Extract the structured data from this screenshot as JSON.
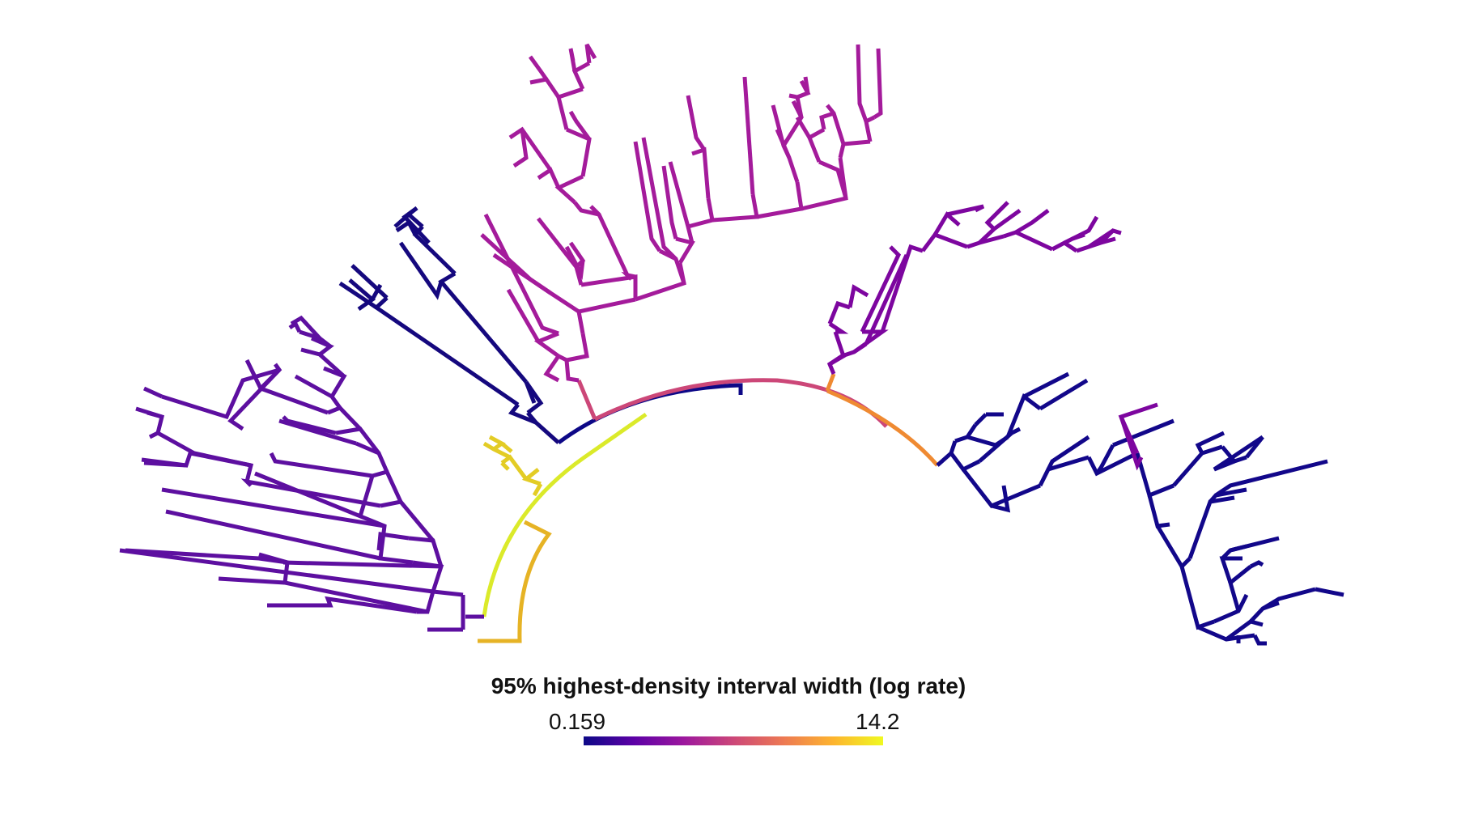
{
  "legend": {
    "title": "95% highest-density interval width (log rate)",
    "min_label": "0.159",
    "max_label": "14.2",
    "colormap": "plasma",
    "stops": [
      "#0d0887",
      "#5c01a6",
      "#9c179e",
      "#cc4778",
      "#ed7953",
      "#fdb42f",
      "#f0f921"
    ]
  },
  "tree": {
    "layout": "fan",
    "tip_count": 77,
    "clades": [
      {
        "name": "left-purple-clade",
        "color": "#5d0fa0"
      },
      {
        "name": "left-navy-clade",
        "color": "#15087e"
      },
      {
        "name": "yellow-clade",
        "color": "#e3cc25"
      },
      {
        "name": "top-magenta-clade",
        "color": "#a41b9b"
      },
      {
        "name": "right-purple-clade",
        "color": "#7d069f"
      },
      {
        "name": "right-navy-clade",
        "color": "#12078a"
      },
      {
        "name": "backbone-red",
        "color": "#cc4778"
      },
      {
        "name": "backbone-orange",
        "color": "#ef8a32"
      },
      {
        "name": "backbone-yellow",
        "color": "#dbea2a"
      }
    ]
  }
}
